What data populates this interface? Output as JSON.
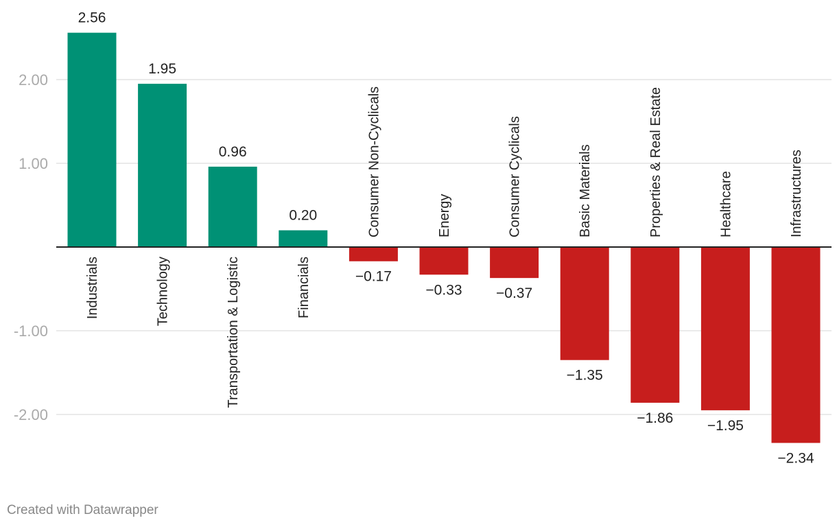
{
  "chart_data": {
    "type": "bar",
    "categories": [
      "Industrials",
      "Technology",
      "Transportation & Logistic",
      "Financials",
      "Consumer Non-Cyclicals",
      "Energy",
      "Consumer Cyclicals",
      "Basic Materials",
      "Properties & Real Estate",
      "Healthcare",
      "Infrastructures"
    ],
    "values": [
      2.56,
      1.95,
      0.96,
      0.2,
      -0.17,
      -0.33,
      -0.37,
      -1.35,
      -1.86,
      -1.95,
      -2.34
    ],
    "value_labels": [
      "2.56",
      "1.95",
      "0.96",
      "0.20",
      "−0.17",
      "−0.33",
      "−0.37",
      "−1.35",
      "−1.86",
      "−1.95",
      "−2.34"
    ],
    "yticks": [
      2,
      1,
      -1,
      -2
    ],
    "ytick_labels": [
      "2.00",
      "1.00",
      "-1.00",
      "-2.00"
    ],
    "ylim": [
      -2.6,
      2.9
    ],
    "grid": true,
    "colors": {
      "positive": "#009175",
      "negative": "#c71e1d",
      "gridline": "#e3e3e3",
      "zero_line": "#222222"
    }
  },
  "footer": {
    "credit": "Created with Datawrapper"
  }
}
